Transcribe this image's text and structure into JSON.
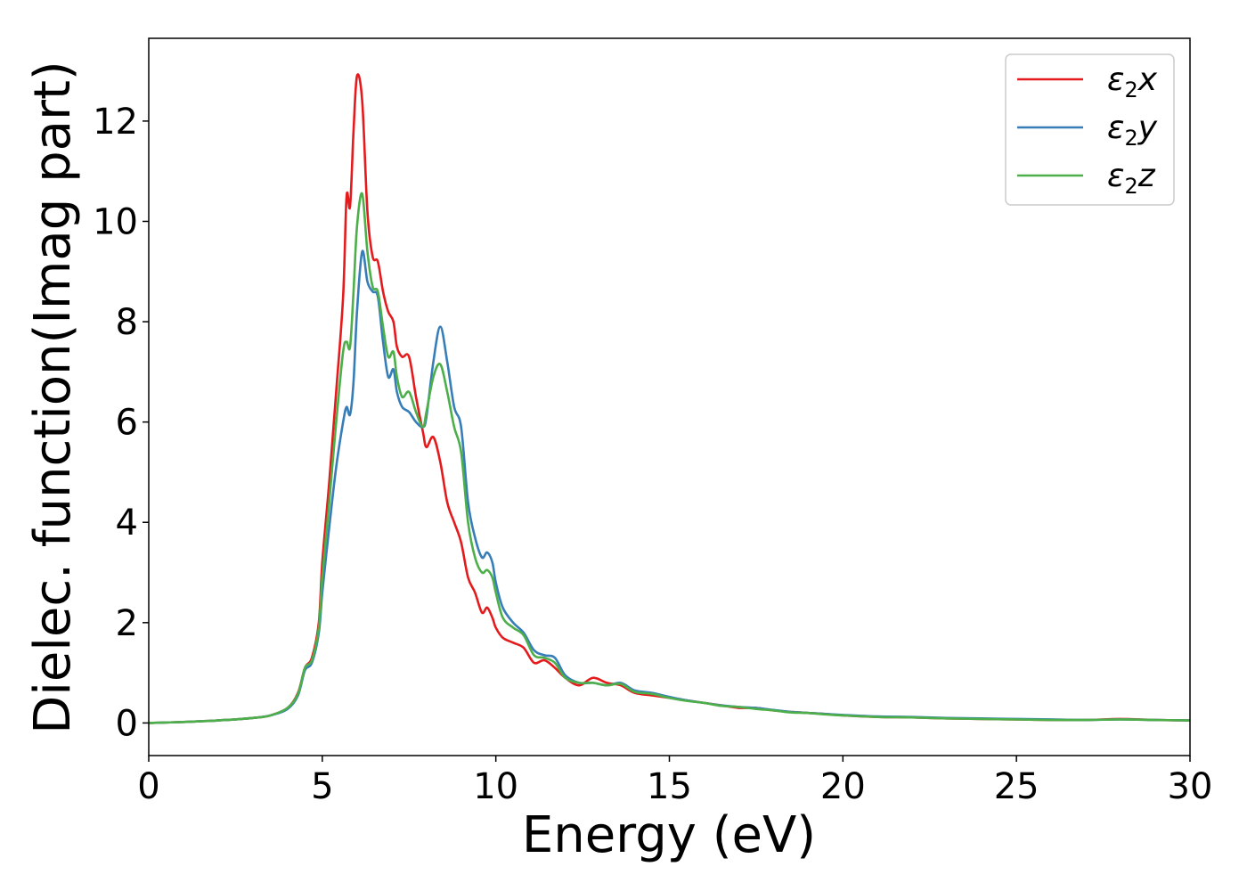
{
  "chart_data": {
    "type": "line",
    "xlabel": "Energy (eV)",
    "ylabel": "Dielec. function(Imag part)",
    "xlim": [
      0,
      30
    ],
    "ylim": [
      -0.65,
      13.65
    ],
    "xticks": [
      0,
      5,
      10,
      15,
      20,
      25,
      30
    ],
    "yticks": [
      0,
      2,
      4,
      6,
      8,
      10,
      12
    ],
    "grid": false,
    "legend_position": "top-right",
    "series": [
      {
        "name": "ε₂x",
        "legend_main": "ε",
        "legend_sub": "2",
        "legend_suffix": "x",
        "color": "#e41a1c",
        "x": [
          0,
          1,
          2,
          3,
          3.5,
          4,
          4.3,
          4.5,
          4.7,
          4.9,
          5.0,
          5.2,
          5.4,
          5.6,
          5.7,
          5.8,
          5.9,
          6.0,
          6.15,
          6.3,
          6.45,
          6.6,
          6.75,
          6.9,
          7.05,
          7.15,
          7.3,
          7.5,
          7.7,
          7.9,
          8.0,
          8.2,
          8.4,
          8.6,
          8.8,
          9.0,
          9.2,
          9.4,
          9.6,
          9.75,
          9.9,
          10.0,
          10.2,
          10.5,
          10.8,
          11.1,
          11.4,
          11.7,
          12.0,
          12.4,
          12.8,
          13.2,
          13.6,
          14.0,
          14.5,
          15.0,
          15.5,
          16.0,
          16.5,
          17.0,
          17.5,
          18.0,
          18.5,
          19.0,
          19.5,
          20.0,
          21,
          22,
          23,
          24,
          25,
          26,
          27,
          28,
          29,
          30
        ],
        "y": [
          0.0,
          0.02,
          0.05,
          0.1,
          0.15,
          0.3,
          0.6,
          1.1,
          1.3,
          2.0,
          3.2,
          4.8,
          6.6,
          8.5,
          10.5,
          10.3,
          11.8,
          12.9,
          12.4,
          10.2,
          9.3,
          9.2,
          8.6,
          8.2,
          8.0,
          7.5,
          7.3,
          7.3,
          6.5,
          5.8,
          5.5,
          5.7,
          5.2,
          4.4,
          4.0,
          3.6,
          2.9,
          2.6,
          2.2,
          2.3,
          2.1,
          1.9,
          1.7,
          1.6,
          1.5,
          1.2,
          1.25,
          1.1,
          0.9,
          0.75,
          0.9,
          0.8,
          0.75,
          0.6,
          0.55,
          0.5,
          0.45,
          0.4,
          0.35,
          0.3,
          0.3,
          0.25,
          0.22,
          0.2,
          0.18,
          0.15,
          0.12,
          0.11,
          0.09,
          0.08,
          0.07,
          0.06,
          0.06,
          0.08,
          0.06,
          0.05
        ]
      },
      {
        "name": "ε₂y",
        "legend_main": "ε",
        "legend_sub": "2",
        "legend_suffix": "y",
        "color": "#377eb8",
        "x": [
          0,
          1,
          2,
          3,
          3.5,
          4,
          4.3,
          4.5,
          4.7,
          4.9,
          5.0,
          5.2,
          5.4,
          5.6,
          5.7,
          5.8,
          5.9,
          6.0,
          6.15,
          6.3,
          6.45,
          6.6,
          6.75,
          6.9,
          7.05,
          7.15,
          7.3,
          7.5,
          7.7,
          7.9,
          8.0,
          8.2,
          8.4,
          8.6,
          8.8,
          9.0,
          9.2,
          9.4,
          9.6,
          9.75,
          9.9,
          10.0,
          10.2,
          10.5,
          10.8,
          11.1,
          11.4,
          11.7,
          12.0,
          12.4,
          12.8,
          13.2,
          13.6,
          14.0,
          14.5,
          15.0,
          15.5,
          16.0,
          16.5,
          17.0,
          17.5,
          18.0,
          18.5,
          19.0,
          19.5,
          20.0,
          21,
          22,
          23,
          24,
          25,
          26,
          27,
          28,
          29,
          30
        ],
        "y": [
          0.0,
          0.02,
          0.05,
          0.1,
          0.15,
          0.28,
          0.55,
          1.05,
          1.2,
          1.8,
          2.6,
          3.9,
          5.1,
          6.0,
          6.3,
          6.15,
          6.8,
          8.2,
          9.4,
          8.8,
          8.6,
          8.5,
          7.6,
          6.9,
          7.05,
          6.6,
          6.3,
          6.2,
          6.0,
          5.9,
          6.1,
          7.2,
          7.9,
          7.2,
          6.3,
          5.9,
          4.4,
          3.7,
          3.3,
          3.4,
          3.2,
          2.8,
          2.3,
          2.0,
          1.8,
          1.45,
          1.35,
          1.3,
          0.95,
          0.8,
          0.8,
          0.75,
          0.8,
          0.65,
          0.6,
          0.52,
          0.45,
          0.4,
          0.35,
          0.32,
          0.3,
          0.26,
          0.22,
          0.2,
          0.18,
          0.16,
          0.13,
          0.12,
          0.1,
          0.09,
          0.08,
          0.07,
          0.06,
          0.07,
          0.06,
          0.05
        ]
      },
      {
        "name": "ε₂z",
        "legend_main": "ε",
        "legend_sub": "2",
        "legend_suffix": "z",
        "color": "#4daf4a",
        "x": [
          0,
          1,
          2,
          3,
          3.5,
          4,
          4.3,
          4.5,
          4.7,
          4.9,
          5.0,
          5.2,
          5.4,
          5.6,
          5.7,
          5.8,
          5.9,
          6.0,
          6.15,
          6.3,
          6.45,
          6.6,
          6.75,
          6.9,
          7.05,
          7.15,
          7.3,
          7.5,
          7.7,
          7.9,
          8.0,
          8.2,
          8.4,
          8.6,
          8.8,
          9.0,
          9.2,
          9.4,
          9.6,
          9.75,
          9.9,
          10.0,
          10.2,
          10.5,
          10.8,
          11.1,
          11.4,
          11.7,
          12.0,
          12.4,
          12.8,
          13.2,
          13.6,
          14.0,
          14.5,
          15.0,
          15.5,
          16.0,
          16.5,
          17.0,
          17.5,
          18.0,
          18.5,
          19.0,
          19.5,
          20.0,
          21,
          22,
          23,
          24,
          25,
          26,
          27,
          28,
          29,
          30
        ],
        "y": [
          0.0,
          0.02,
          0.05,
          0.1,
          0.15,
          0.3,
          0.58,
          1.1,
          1.25,
          1.9,
          2.9,
          4.4,
          6.0,
          7.4,
          7.6,
          7.5,
          8.6,
          9.9,
          10.55,
          9.4,
          8.7,
          8.6,
          7.9,
          7.3,
          7.4,
          6.9,
          6.5,
          6.6,
          6.2,
          5.9,
          6.2,
          6.9,
          7.15,
          6.6,
          5.9,
          5.4,
          4.0,
          3.3,
          3.0,
          3.05,
          2.9,
          2.6,
          2.1,
          1.9,
          1.75,
          1.35,
          1.3,
          1.2,
          0.9,
          0.8,
          0.8,
          0.75,
          0.78,
          0.62,
          0.58,
          0.5,
          0.44,
          0.4,
          0.34,
          0.32,
          0.28,
          0.25,
          0.21,
          0.2,
          0.17,
          0.15,
          0.12,
          0.11,
          0.09,
          0.08,
          0.07,
          0.06,
          0.06,
          0.07,
          0.06,
          0.05
        ]
      }
    ]
  }
}
